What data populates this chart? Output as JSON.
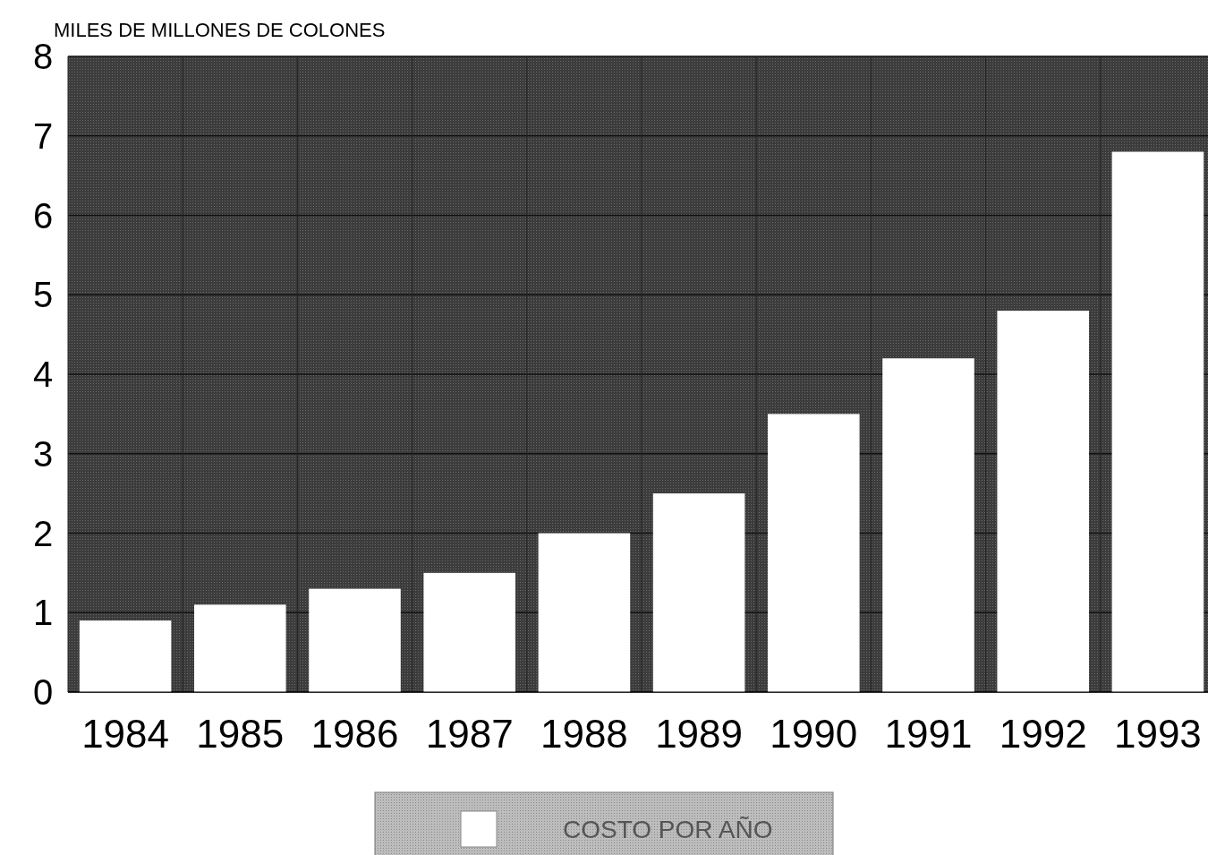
{
  "chart_data": {
    "type": "bar",
    "ylabel": "MILES DE MILLONES DE COLONES",
    "categories": [
      "1984",
      "1985",
      "1986",
      "1987",
      "1988",
      "1989",
      "1990",
      "1991",
      "1992",
      "1993"
    ],
    "series": [
      {
        "name": "COSTO POR AÑO",
        "color": "#ffffff",
        "values": [
          0.9,
          1.1,
          1.3,
          1.5,
          2.0,
          2.5,
          3.5,
          4.2,
          4.8,
          6.8
        ]
      }
    ],
    "ylim": [
      0,
      8
    ],
    "yticks": [
      0,
      1,
      2,
      3,
      4,
      5,
      6,
      7,
      8
    ],
    "grid": true,
    "legend": "bottom"
  }
}
